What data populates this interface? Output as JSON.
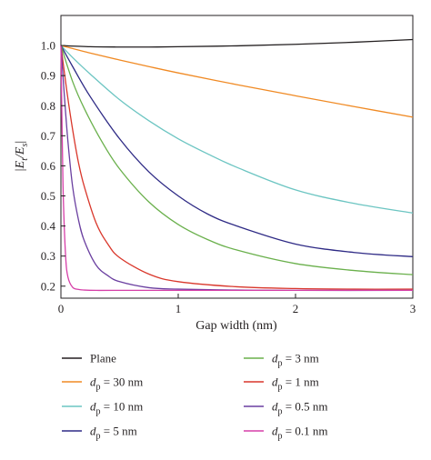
{
  "chart_data": {
    "type": "line",
    "title": "",
    "xlabel": "Gap width (nm)",
    "ylabel": {
      "prefix": "|E",
      "sub1": "t",
      "mid": "/E",
      "sub2": "s",
      "suffix": "|"
    },
    "xlim": [
      0,
      3
    ],
    "ylim": [
      0.16,
      1.1
    ],
    "x_ticks": [
      0,
      1,
      2,
      3
    ],
    "x_tick_labels": [
      "0",
      "1",
      "2",
      "3"
    ],
    "y_ticks": [
      0.2,
      0.3,
      0.4,
      0.5,
      0.6,
      0.7,
      0.8,
      0.9,
      1.0
    ],
    "y_tick_labels": [
      "0.2",
      "0.3",
      "0.4",
      "0.5",
      "0.6",
      "0.7",
      "0.8",
      "0.9",
      "1.0"
    ],
    "grid": false,
    "legend_position": "below",
    "series": [
      {
        "name": "Plane",
        "label_var": "",
        "label_sub": "",
        "label_val": "Plane",
        "color": "#231f20",
        "x": [
          0,
          0.25,
          0.5,
          0.75,
          1.0,
          1.5,
          2.0,
          2.5,
          3.0
        ],
        "y": [
          1.0,
          0.996,
          0.995,
          0.995,
          0.996,
          0.999,
          1.004,
          1.011,
          1.02
        ]
      },
      {
        "name": "dp = 30 nm",
        "label_var": "d",
        "label_sub": "p",
        "label_val": " = 30 nm",
        "color": "#f08a24",
        "x": [
          0,
          0.25,
          0.5,
          0.75,
          1.0,
          1.5,
          2.0,
          2.5,
          3.0
        ],
        "y": [
          1.0,
          0.975,
          0.952,
          0.93,
          0.909,
          0.87,
          0.833,
          0.797,
          0.762
        ]
      },
      {
        "name": "dp = 10 nm",
        "label_var": "d",
        "label_sub": "p",
        "label_val": " = 10 nm",
        "color": "#6cc5c2",
        "x": [
          0,
          0.1,
          0.25,
          0.5,
          0.75,
          1.0,
          1.25,
          1.5,
          2.0,
          2.5,
          3.0
        ],
        "y": [
          1.0,
          0.96,
          0.905,
          0.82,
          0.75,
          0.69,
          0.64,
          0.595,
          0.52,
          0.475,
          0.443
        ]
      },
      {
        "name": "dp = 5 nm",
        "label_var": "d",
        "label_sub": "p",
        "label_val": " = 5 nm",
        "color": "#2e2a85",
        "x": [
          0,
          0.1,
          0.25,
          0.5,
          0.75,
          1.0,
          1.25,
          1.5,
          2.0,
          2.5,
          3.0
        ],
        "y": [
          1.0,
          0.93,
          0.83,
          0.69,
          0.58,
          0.5,
          0.44,
          0.4,
          0.34,
          0.312,
          0.298
        ]
      },
      {
        "name": "dp = 3 nm",
        "label_var": "d",
        "label_sub": "p",
        "label_val": " = 3 nm",
        "color": "#6ab04c",
        "x": [
          0,
          0.1,
          0.2,
          0.35,
          0.5,
          0.75,
          1.0,
          1.25,
          1.5,
          2.0,
          2.5,
          3.0
        ],
        "y": [
          1.0,
          0.88,
          0.79,
          0.68,
          0.59,
          0.48,
          0.405,
          0.355,
          0.32,
          0.275,
          0.252,
          0.238
        ]
      },
      {
        "name": "dp = 1 nm",
        "label_var": "d",
        "label_sub": "p",
        "label_val": " = 1 nm",
        "color": "#d9372b",
        "x": [
          0,
          0.05,
          0.1,
          0.15,
          0.2,
          0.3,
          0.4,
          0.5,
          0.75,
          1.0,
          1.5,
          2.0,
          2.5,
          3.0
        ],
        "y": [
          1.0,
          0.85,
          0.72,
          0.61,
          0.53,
          0.41,
          0.34,
          0.295,
          0.24,
          0.215,
          0.198,
          0.192,
          0.19,
          0.19
        ]
      },
      {
        "name": "dp = 0.5 nm",
        "label_var": "d",
        "label_sub": "p",
        "label_val": " = 0.5 nm",
        "color": "#6a3fa0",
        "x": [
          0,
          0.03,
          0.06,
          0.1,
          0.15,
          0.2,
          0.3,
          0.4,
          0.5,
          0.75,
          1.0,
          1.5,
          2.0,
          3.0
        ],
        "y": [
          1.0,
          0.83,
          0.68,
          0.53,
          0.42,
          0.35,
          0.27,
          0.235,
          0.215,
          0.195,
          0.19,
          0.187,
          0.186,
          0.186
        ]
      },
      {
        "name": "dp = 0.1 nm",
        "label_var": "d",
        "label_sub": "p",
        "label_val": " = 0.1 nm",
        "color": "#d63fa8",
        "x": [
          0,
          0.01,
          0.02,
          0.04,
          0.06,
          0.1,
          0.15,
          0.2,
          0.3,
          0.5,
          1.0,
          2.0,
          3.0
        ],
        "y": [
          1.0,
          0.72,
          0.5,
          0.3,
          0.23,
          0.196,
          0.189,
          0.187,
          0.186,
          0.186,
          0.186,
          0.186,
          0.186
        ]
      }
    ]
  }
}
